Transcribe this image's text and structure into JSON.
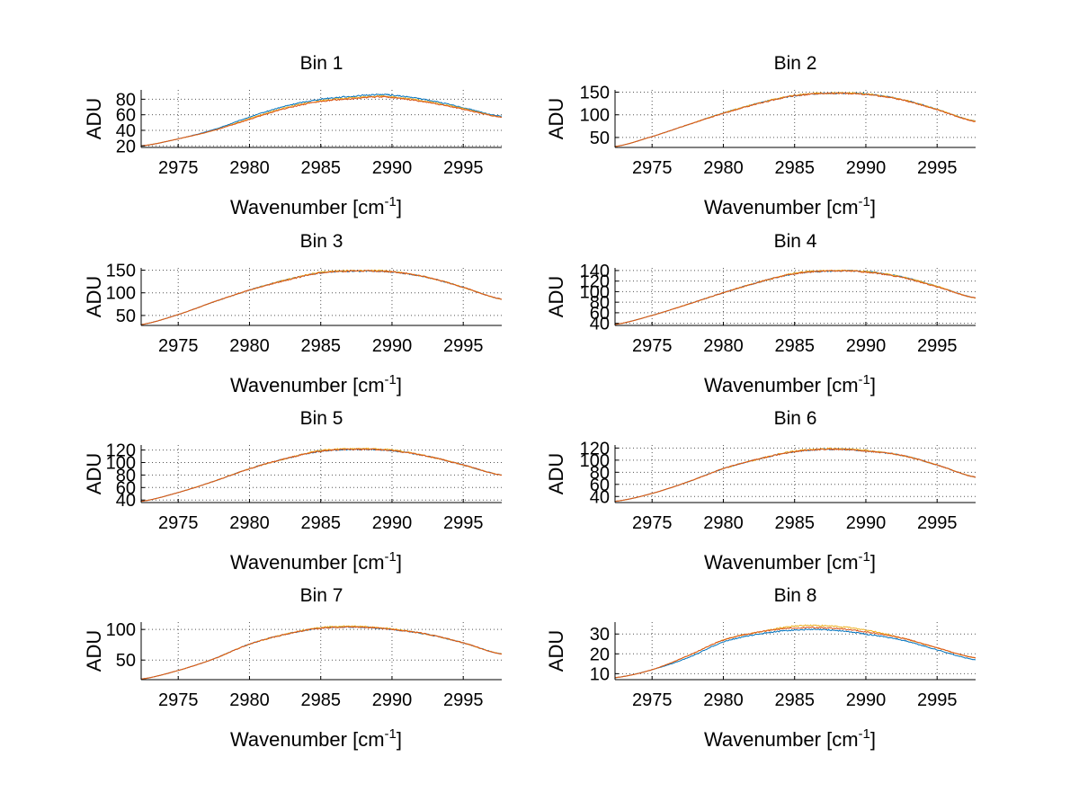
{
  "figure": {
    "background": "#ffffff",
    "series_colors": [
      "#0072bd",
      "#edb120",
      "#d95319"
    ]
  },
  "chart_data": [
    {
      "type": "line",
      "title": "Bin 1",
      "xlabel": "Wavenumber [cm",
      "xlabel_sup": "-1",
      "xlabel_end": "]",
      "ylabel": "ADU",
      "xlim": [
        2972.4,
        2997.7
      ],
      "ylim": [
        18,
        92
      ],
      "xticks": [
        2975,
        2980,
        2985,
        2990,
        2995
      ],
      "yticks": [
        20,
        40,
        60,
        80
      ],
      "grid": true,
      "legend": "none",
      "x": [
        2972.4,
        2975,
        2977.5,
        2980,
        2982.5,
        2985,
        2987.5,
        2989,
        2990,
        2992.5,
        2995,
        2997.7
      ],
      "series": [
        {
          "values": [
            20,
            29,
            41,
            57,
            71,
            80,
            84,
            86,
            85,
            79,
            69,
            58
          ]
        },
        {
          "values": [
            20,
            29,
            40,
            55,
            69,
            78,
            82,
            84,
            83,
            77,
            68,
            57
          ]
        },
        {
          "values": [
            20,
            29,
            40,
            54,
            68,
            77,
            81,
            83,
            82,
            76,
            67,
            57
          ]
        }
      ]
    },
    {
      "type": "line",
      "title": "Bin 2",
      "xlabel": "Wavenumber [cm",
      "xlabel_sup": "-1",
      "xlabel_end": "]",
      "ylabel": "ADU",
      "xlim": [
        2972.4,
        2997.7
      ],
      "ylim": [
        28,
        155
      ],
      "xticks": [
        2975,
        2980,
        2985,
        2990,
        2995
      ],
      "yticks": [
        50,
        100,
        150
      ],
      "grid": true,
      "legend": "none",
      "x": [
        2972.4,
        2975,
        2977.5,
        2980,
        2982.5,
        2985,
        2987.5,
        2990,
        2992.5,
        2995,
        2997.7
      ],
      "series": [
        {
          "values": [
            30,
            52,
            78,
            104,
            126,
            142,
            147,
            146,
            134,
            112,
            86
          ]
        },
        {
          "values": [
            30,
            52,
            78,
            104,
            126,
            143,
            148,
            146,
            134,
            112,
            86
          ]
        },
        {
          "values": [
            30,
            52,
            78,
            103,
            125,
            142,
            147,
            145,
            133,
            111,
            85
          ]
        }
      ]
    },
    {
      "type": "line",
      "title": "Bin 3",
      "xlabel": "Wavenumber [cm",
      "xlabel_sup": "-1",
      "xlabel_end": "]",
      "ylabel": "ADU",
      "xlim": [
        2972.4,
        2997.7
      ],
      "ylim": [
        28,
        155
      ],
      "xticks": [
        2975,
        2980,
        2985,
        2990,
        2995
      ],
      "yticks": [
        50,
        100,
        150
      ],
      "grid": true,
      "legend": "none",
      "x": [
        2972.4,
        2975,
        2977.5,
        2980,
        2982.5,
        2985,
        2987.5,
        2990,
        2992.5,
        2995,
        2997.7
      ],
      "series": [
        {
          "values": [
            30,
            52,
            80,
            106,
            128,
            144,
            148,
            146,
            134,
            112,
            86
          ]
        },
        {
          "values": [
            30,
            52,
            80,
            106,
            128,
            145,
            149,
            147,
            134,
            112,
            86
          ]
        },
        {
          "values": [
            30,
            52,
            80,
            106,
            127,
            144,
            148,
            146,
            134,
            112,
            86
          ]
        }
      ]
    },
    {
      "type": "line",
      "title": "Bin 4",
      "xlabel": "Wavenumber [cm",
      "xlabel_sup": "-1",
      "xlabel_end": "]",
      "ylabel": "ADU",
      "xlim": [
        2972.4,
        2997.7
      ],
      "ylim": [
        36,
        145
      ],
      "xticks": [
        2975,
        2980,
        2985,
        2990,
        2995
      ],
      "yticks": [
        40,
        60,
        80,
        100,
        120,
        140
      ],
      "grid": true,
      "legend": "none",
      "x": [
        2972.4,
        2975,
        2977.5,
        2980,
        2982.5,
        2985,
        2987.5,
        2990,
        2992.5,
        2995,
        2997.7
      ],
      "series": [
        {
          "values": [
            38,
            55,
            76,
            98,
            118,
            134,
            139,
            138,
            128,
            110,
            88
          ]
        },
        {
          "values": [
            38,
            55,
            76,
            98,
            118,
            135,
            140,
            138,
            128,
            110,
            88
          ]
        },
        {
          "values": [
            38,
            55,
            76,
            98,
            118,
            134,
            139,
            137,
            127,
            109,
            88
          ]
        }
      ]
    },
    {
      "type": "line",
      "title": "Bin 5",
      "xlabel": "Wavenumber [cm",
      "xlabel_sup": "-1",
      "xlabel_end": "]",
      "ylabel": "ADU",
      "xlim": [
        2972.4,
        2997.7
      ],
      "ylim": [
        36,
        128
      ],
      "xticks": [
        2975,
        2980,
        2985,
        2990,
        2995
      ],
      "yticks": [
        40,
        60,
        80,
        100,
        120
      ],
      "grid": true,
      "legend": "none",
      "x": [
        2972.4,
        2975,
        2977.5,
        2980,
        2982.5,
        2985,
        2987.5,
        2990,
        2992.5,
        2995,
        2997.7
      ],
      "series": [
        {
          "values": [
            38,
            52,
            70,
            90,
            106,
            118,
            121,
            119,
            110,
            96,
            80
          ]
        },
        {
          "values": [
            38,
            52,
            70,
            90,
            106,
            119,
            122,
            120,
            110,
            96,
            80
          ]
        },
        {
          "values": [
            38,
            52,
            70,
            90,
            106,
            118,
            121,
            119,
            110,
            96,
            80
          ]
        }
      ]
    },
    {
      "type": "line",
      "title": "Bin 6",
      "xlabel": "Wavenumber [cm",
      "xlabel_sup": "-1",
      "xlabel_end": "]",
      "ylabel": "ADU",
      "xlim": [
        2972.4,
        2997.7
      ],
      "ylim": [
        30,
        125
      ],
      "xticks": [
        2975,
        2980,
        2985,
        2990,
        2995
      ],
      "yticks": [
        40,
        60,
        80,
        100,
        120
      ],
      "grid": true,
      "legend": "none",
      "x": [
        2972.4,
        2975,
        2977.5,
        2980,
        2982.5,
        2985,
        2987.5,
        2990,
        2992.5,
        2995,
        2997.7
      ],
      "series": [
        {
          "values": [
            32,
            45,
            64,
            86,
            102,
            114,
            118,
            115,
            108,
            92,
            72
          ]
        },
        {
          "values": [
            32,
            45,
            64,
            86,
            102,
            115,
            119,
            116,
            108,
            92,
            72
          ]
        },
        {
          "values": [
            32,
            45,
            64,
            86,
            102,
            114,
            118,
            115,
            108,
            92,
            72
          ]
        }
      ]
    },
    {
      "type": "line",
      "title": "Bin 7",
      "xlabel": "Wavenumber [cm",
      "xlabel_sup": "-1",
      "xlabel_end": "]",
      "ylabel": "ADU",
      "xlim": [
        2972.4,
        2997.7
      ],
      "ylim": [
        18,
        112
      ],
      "xticks": [
        2975,
        2980,
        2985,
        2990,
        2995
      ],
      "yticks": [
        50,
        100
      ],
      "grid": true,
      "legend": "none",
      "x": [
        2972.4,
        2975,
        2977.5,
        2980,
        2982.5,
        2985,
        2987.5,
        2990,
        2992.5,
        2995,
        2997.7
      ],
      "series": [
        {
          "values": [
            19,
            33,
            52,
            76,
            92,
            102,
            104,
            100,
            92,
            78,
            60
          ]
        },
        {
          "values": [
            19,
            33,
            52,
            76,
            92,
            103,
            105,
            101,
            92,
            78,
            60
          ]
        },
        {
          "values": [
            19,
            33,
            52,
            76,
            92,
            102,
            104,
            100,
            92,
            78,
            60
          ]
        }
      ]
    },
    {
      "type": "line",
      "title": "Bin 8",
      "xlabel": "Wavenumber [cm",
      "xlabel_sup": "-1",
      "xlabel_end": "]",
      "ylabel": "ADU",
      "xlim": [
        2972.4,
        2997.7
      ],
      "ylim": [
        7,
        36
      ],
      "xticks": [
        2975,
        2980,
        2985,
        2990,
        2995
      ],
      "yticks": [
        10,
        20,
        30
      ],
      "grid": true,
      "legend": "none",
      "x": [
        2972.4,
        2975,
        2977.5,
        2980,
        2982.5,
        2985,
        2987.5,
        2990,
        2992.5,
        2995,
        2997.7
      ],
      "series": [
        {
          "values": [
            8,
            12,
            18,
            26,
            30,
            32,
            32,
            30,
            27,
            22,
            17
          ]
        },
        {
          "values": [
            8,
            12,
            19,
            27,
            31,
            34,
            34,
            32,
            28,
            23,
            18
          ]
        },
        {
          "values": [
            8,
            12,
            19,
            27,
            31,
            33,
            33,
            31,
            28,
            23,
            18
          ]
        }
      ]
    }
  ]
}
